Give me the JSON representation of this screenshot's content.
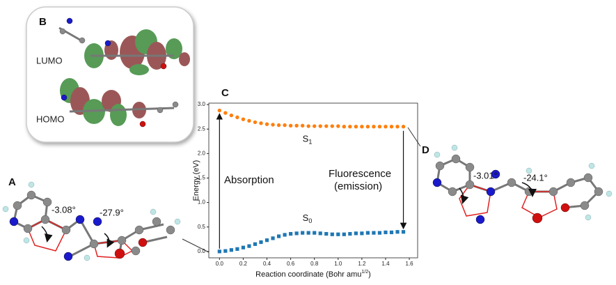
{
  "chart_data": {
    "type": "scatter",
    "panel": "C",
    "xlabel": "Reaction coordinate (Bohr amu",
    "xlabel_sup": "1/2",
    "xlabel_end": ")",
    "ylabel": "Energy (eV)",
    "x": [
      0,
      0.05,
      0.1,
      0.15,
      0.2,
      0.25,
      0.3,
      0.35,
      0.4,
      0.45,
      0.5,
      0.55,
      0.6,
      0.65,
      0.7,
      0.75,
      0.8,
      0.85,
      0.9,
      0.95,
      1.0,
      1.05,
      1.1,
      1.15,
      1.2,
      1.25,
      1.3,
      1.35,
      1.4,
      1.45,
      1.5,
      1.55
    ],
    "series": [
      {
        "state": "S",
        "sub": "1",
        "color": "#ff7f0e",
        "marker": "circle",
        "values": [
          2.88,
          2.83,
          2.78,
          2.74,
          2.7,
          2.67,
          2.64,
          2.62,
          2.6,
          2.59,
          2.58,
          2.58,
          2.57,
          2.57,
          2.57,
          2.56,
          2.56,
          2.56,
          2.56,
          2.56,
          2.56,
          2.55,
          2.55,
          2.55,
          2.55,
          2.55,
          2.55,
          2.55,
          2.55,
          2.55,
          2.55,
          2.55
        ]
      },
      {
        "state": "S",
        "sub": "0",
        "color": "#1f77b4",
        "marker": "square",
        "values": [
          0.0,
          0.01,
          0.03,
          0.05,
          0.08,
          0.11,
          0.15,
          0.19,
          0.23,
          0.27,
          0.31,
          0.34,
          0.36,
          0.37,
          0.38,
          0.38,
          0.38,
          0.37,
          0.36,
          0.35,
          0.35,
          0.35,
          0.36,
          0.37,
          0.37,
          0.38,
          0.38,
          0.38,
          0.39,
          0.39,
          0.4,
          0.4
        ]
      }
    ],
    "xlim": [
      -0.09,
      1.67
    ],
    "ylim": [
      -0.13,
      3.03
    ],
    "xticks": [
      {
        "value": 0,
        "label": "0.0"
      },
      0.2,
      0.4,
      0.6,
      0.8,
      {
        "value": 1,
        "label": "1.0"
      },
      1.2,
      1.4,
      1.6
    ],
    "yticks": [
      {
        "value": 0,
        "label": "0.0"
      },
      0.5,
      {
        "value": 1,
        "label": "1.0"
      },
      1.5,
      {
        "value": 2,
        "label": "2.0"
      },
      2.5,
      {
        "value": 3,
        "label": "3.0"
      }
    ],
    "annotations": {
      "absorption": "Absorption",
      "fluorescence": "Fluorescence",
      "emission": "(emission)"
    }
  },
  "panels": {
    "A": "A",
    "B": "B",
    "D": "D",
    "lumo": "LUMO",
    "homo": "HOMO",
    "angles_a": [
      "-3.08°",
      "-27.9°"
    ],
    "angles_d": [
      "-3.01°",
      "-24.1°"
    ]
  }
}
